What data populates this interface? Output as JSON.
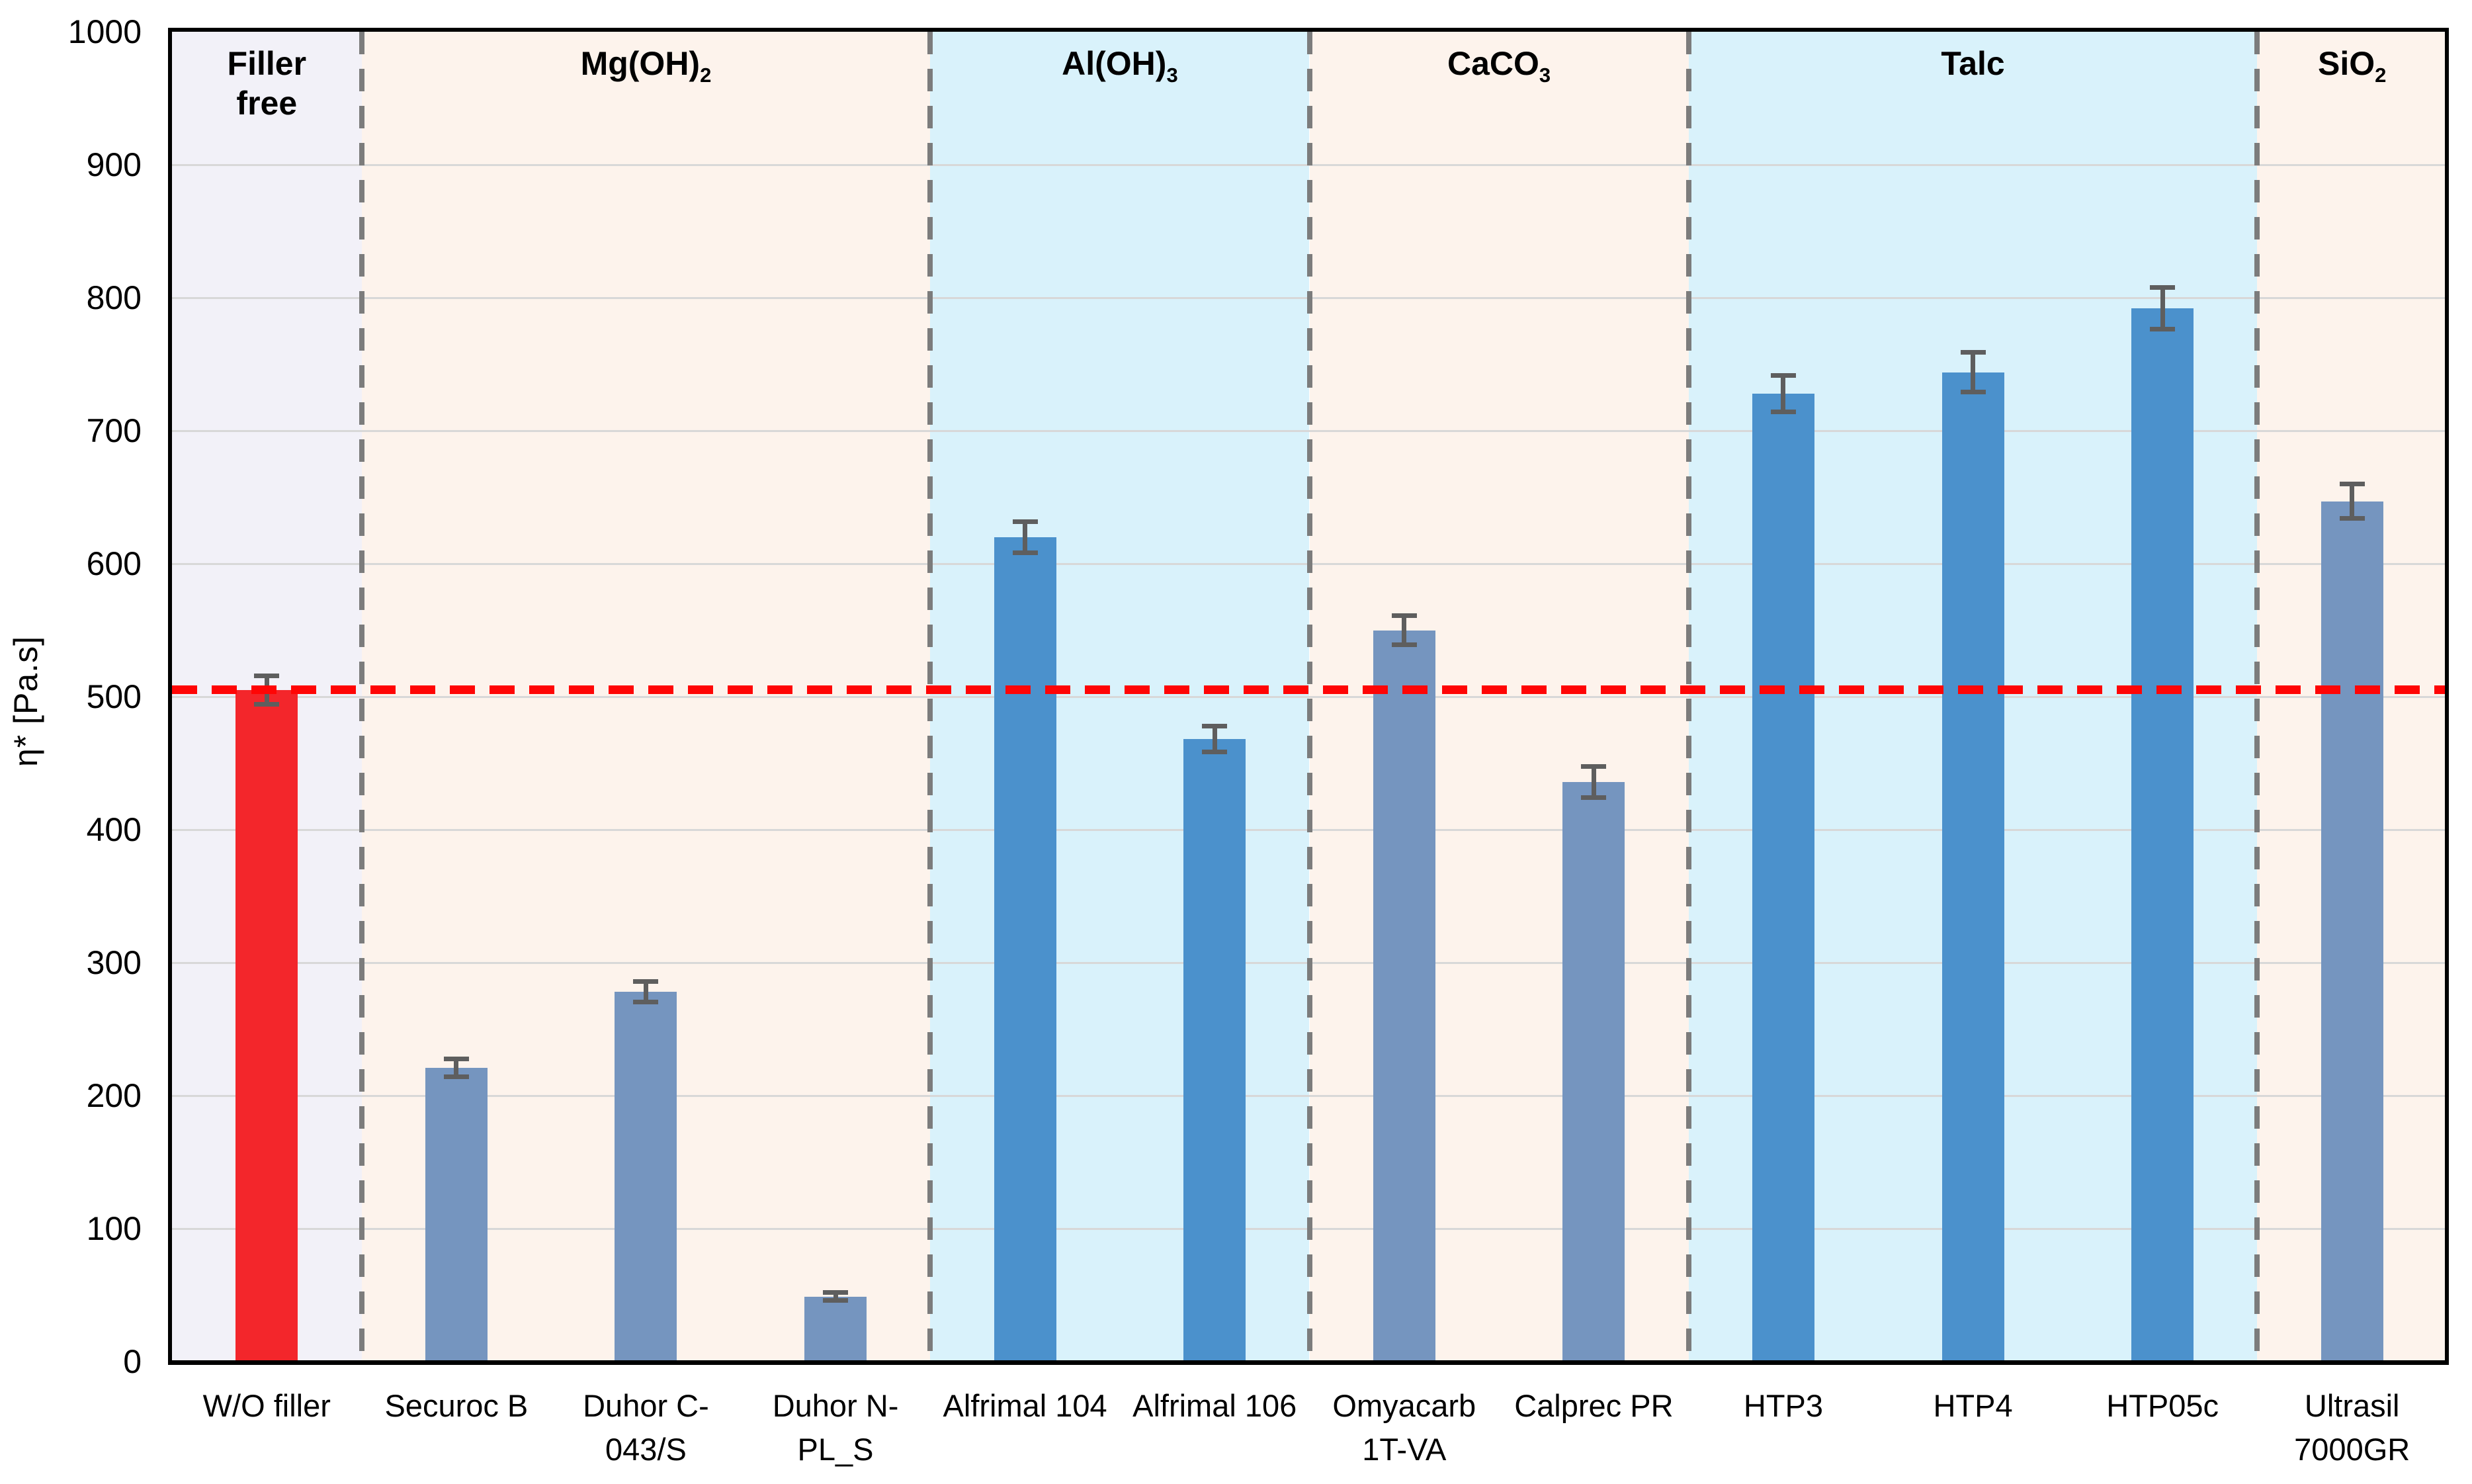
{
  "chart_data": {
    "type": "bar",
    "title": "",
    "xlabel": "",
    "ylabel": "η* [Pa.s]",
    "ylim": [
      0,
      1000
    ],
    "ytick_interval": 100,
    "y_ticks": [
      0,
      100,
      200,
      300,
      400,
      500,
      600,
      700,
      800,
      900,
      1000
    ],
    "grid": true,
    "legend": "none",
    "categories": [
      "W/O filler",
      "Securoc B",
      "Duhor C-043/S",
      "Duhor N-PL_S",
      "Alfrimal 104",
      "Alfrimal 106",
      "Omyacarb 1T-VA",
      "Calprec PR",
      "HTP3",
      "HTP4",
      "HTP05c",
      "Ultrasil 7000GR"
    ],
    "category_label_lines": [
      [
        "W/O filler"
      ],
      [
        "Securoc B"
      ],
      [
        "Duhor C-",
        "043/S"
      ],
      [
        "Duhor N-",
        "PL_S"
      ],
      [
        "Alfrimal 104"
      ],
      [
        "Alfrimal 106"
      ],
      [
        "Omyacarb",
        "1T-VA"
      ],
      [
        "Calprec PR"
      ],
      [
        "HTP3"
      ],
      [
        "HTP4"
      ],
      [
        "HTP05c"
      ],
      [
        "Ultrasil",
        "7000GR"
      ]
    ],
    "values": [
      505,
      221,
      278,
      49,
      620,
      468,
      550,
      436,
      728,
      744,
      792,
      647
    ],
    "errors": [
      11,
      7,
      8,
      3,
      12,
      10,
      11,
      12,
      14,
      15,
      16,
      13
    ],
    "bar_colors": [
      "#F3262B",
      "#7595BF",
      "#7595BF",
      "#7595BF",
      "#4B91CC",
      "#4B91CC",
      "#7595BF",
      "#7595BF",
      "#4B91CC",
      "#4B91CC",
      "#4B91CC",
      "#7595BF"
    ],
    "reference_line": {
      "value": 505,
      "color": "#FF0505",
      "style": "dashed"
    },
    "groups": [
      {
        "name": "filler-free",
        "label_lines": [
          "Filler",
          "free"
        ],
        "label_sub": "",
        "span": 1,
        "bg": "#F2F1F8"
      },
      {
        "name": "mg-oh-2",
        "label_lines": [
          "Mg(OH)"
        ],
        "label_sub": "2",
        "span": 3,
        "bg": "#FDF3EC"
      },
      {
        "name": "al-oh-3",
        "label_lines": [
          "Al(OH)"
        ],
        "label_sub": "3",
        "span": 2,
        "bg": "#D9F2FB"
      },
      {
        "name": "caco3",
        "label_lines": [
          "CaCO"
        ],
        "label_sub": "3",
        "span": 2,
        "bg": "#FDF3EC"
      },
      {
        "name": "talc",
        "label_lines": [
          "Talc"
        ],
        "label_sub": "",
        "span": 3,
        "bg": "#D9F2FB"
      },
      {
        "name": "sio2",
        "label_lines": [
          "SiO"
        ],
        "label_sub": "2",
        "span": 1,
        "bg": "#FDF3EC"
      }
    ],
    "colors": {
      "gridline": "#D8D8D8",
      "separator": "#7C7C7C",
      "error_bar": "#5E5E5E",
      "axis": "#000000",
      "background": "#FFFFFF",
      "band_lavender": "#F2F1F8",
      "band_peach": "#FDF3EC",
      "band_cyan": "#D9F2FB",
      "bar_muted_blue": "#7595BF",
      "bar_vivid_blue": "#4B91CC",
      "bar_red": "#F3262B",
      "reference_red": "#FF0505"
    }
  }
}
